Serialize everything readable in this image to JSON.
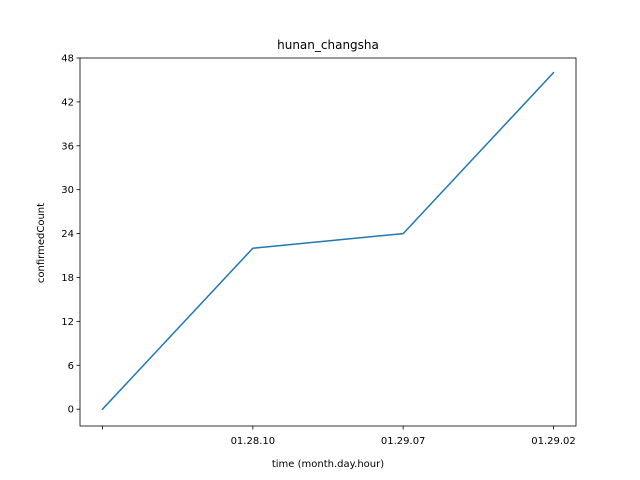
{
  "chart_data": {
    "type": "line",
    "title": "hunan_changsha",
    "xlabel": "time (month.day.hour)",
    "ylabel": "confirmedCount",
    "categories": [
      "",
      "01.28.10",
      "01.29.07",
      "01.29.02"
    ],
    "series": [
      {
        "color": "#1f77b4",
        "values": [
          0,
          22,
          24,
          46
        ]
      }
    ],
    "ylim": [
      -2.3,
      48
    ],
    "yticks": [
      0,
      6,
      12,
      18,
      24,
      30,
      36,
      42,
      48
    ],
    "grid": false,
    "legend": "none"
  }
}
